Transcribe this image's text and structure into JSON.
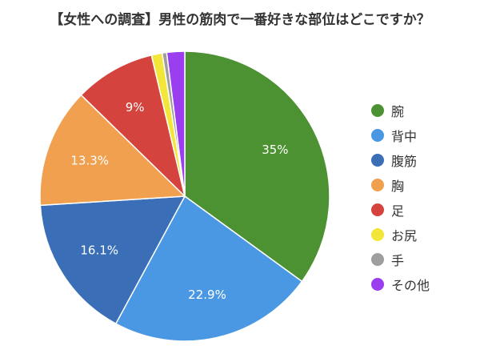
{
  "chart_data": {
    "type": "pie",
    "title": "【女性への調査】男性の筋肉で一番好きな部位はどこですか？",
    "slices": [
      {
        "label": "腕",
        "value": 35,
        "data_label": "35%",
        "color": "#4c9233"
      },
      {
        "label": "背中",
        "value": 22.9,
        "data_label": "22.9%",
        "color": "#4a98e4"
      },
      {
        "label": "腹筋",
        "value": 16.1,
        "data_label": "16.1%",
        "color": "#3a6fb8"
      },
      {
        "label": "胸",
        "value": 13.3,
        "data_label": "13.3%",
        "color": "#f0a04f"
      },
      {
        "label": "足",
        "value": 9,
        "data_label": "9%",
        "color": "#d4433d"
      },
      {
        "label": "お尻",
        "value": 1.2,
        "data_label": "",
        "color": "#f2e63a"
      },
      {
        "label": "手",
        "value": 0.5,
        "data_label": "",
        "color": "#9e9e9e"
      },
      {
        "label": "その他",
        "value": 2,
        "data_label": "",
        "color": "#9a3ef0"
      }
    ],
    "start": "12 o'clock",
    "direction": "clockwise",
    "legend_position": "right"
  }
}
